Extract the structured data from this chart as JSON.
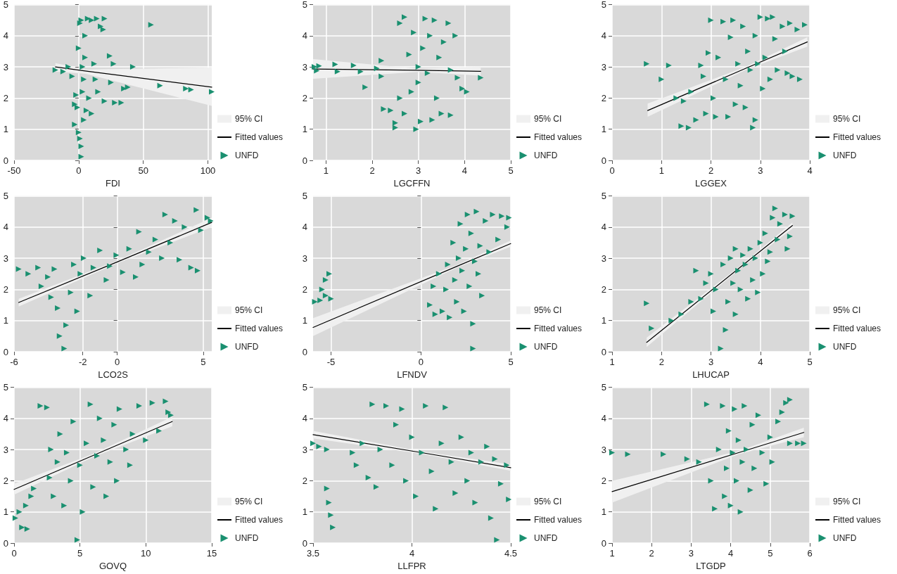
{
  "chart_data": [
    {
      "type": "scatter",
      "xlabel": "FDI",
      "annotations": [
        "95% CI"
      ],
      "xlim": [
        -50,
        103
      ],
      "xticks": [
        -50,
        0,
        50,
        100
      ],
      "ylim": [
        0,
        5
      ],
      "yticks": [
        0,
        1,
        2,
        3,
        4,
        5
      ],
      "grid": true,
      "legend": "right",
      "series": [
        {
          "name": "Fitted values",
          "type": "line",
          "color": "#000000",
          "x": [
            -18,
            5,
            103
          ],
          "values": [
            3.0,
            2.87,
            2.35
          ],
          "lower": [
            2.85,
            2.78,
            1.75
          ],
          "upper": [
            3.12,
            2.92,
            2.98
          ]
        },
        {
          "name": "UNFD",
          "type": "scatter",
          "marker": "triangle",
          "color": "#1a9070",
          "x": [
            -18,
            -12,
            -8,
            -5,
            -3,
            -2,
            -3,
            -1,
            0,
            1,
            2,
            2,
            0,
            1,
            2,
            3,
            3,
            4,
            4,
            5,
            5,
            6,
            7,
            8,
            10,
            10,
            12,
            13,
            14,
            15,
            17,
            19,
            20,
            20,
            24,
            25,
            27,
            28,
            33,
            35,
            38,
            42,
            56,
            63,
            83,
            87,
            103
          ],
          "values": [
            2.9,
            2.85,
            3.0,
            2.7,
            1.8,
            2.1,
            1.15,
            1.7,
            0.9,
            0.7,
            0.45,
            0.12,
            3.6,
            4.4,
            4.5,
            3.0,
            2.2,
            1.3,
            2.6,
            3.3,
            4.0,
            1.6,
            4.55,
            2.0,
            4.5,
            1.5,
            3.1,
            2.6,
            4.55,
            2.2,
            4.3,
            4.2,
            4.55,
            1.9,
            3.35,
            2.5,
            3.1,
            1.85,
            1.85,
            2.3,
            2.35,
            3.0,
            4.35,
            2.4,
            2.3,
            2.27,
            2.2
          ]
        }
      ]
    },
    {
      "type": "scatter",
      "xlabel": "LGCFFN",
      "annotations": [
        "95% CI"
      ],
      "xlim": [
        0.72,
        5
      ],
      "xticks": [
        1,
        2,
        3,
        4,
        5
      ],
      "ylim": [
        0,
        5
      ],
      "yticks": [
        0,
        1,
        2,
        3,
        4,
        5
      ],
      "grid": true,
      "legend": "right",
      "series": [
        {
          "name": "Fitted values",
          "type": "line",
          "color": "#000000",
          "x": [
            0.72,
            3.0,
            4.35
          ],
          "values": [
            2.93,
            2.89,
            2.86
          ],
          "lower": [
            2.62,
            2.84,
            2.72
          ],
          "upper": [
            3.25,
            2.94,
            3.0
          ]
        },
        {
          "name": "UNFD",
          "type": "scatter",
          "marker": "triangle",
          "color": "#1a9070",
          "x": [
            0.75,
            0.8,
            0.85,
            1.2,
            1.25,
            1.6,
            1.75,
            1.85,
            2.1,
            2.2,
            2.2,
            2.25,
            2.4,
            2.5,
            2.5,
            2.6,
            2.6,
            2.7,
            2.7,
            2.8,
            2.85,
            2.9,
            2.95,
            3.0,
            3.0,
            3.05,
            3.1,
            3.15,
            3.2,
            3.25,
            3.3,
            3.35,
            3.4,
            3.45,
            3.5,
            3.55,
            3.65,
            3.7,
            3.7,
            3.8,
            3.85,
            3.95,
            4.05,
            4.35
          ],
          "values": [
            3.0,
            2.88,
            3.03,
            3.08,
            2.85,
            3.05,
            2.85,
            2.35,
            2.95,
            3.2,
            2.7,
            1.65,
            1.6,
            1.05,
            1.2,
            2.0,
            4.4,
            1.5,
            4.6,
            3.4,
            2.2,
            4.1,
            1.0,
            3.0,
            2.5,
            1.25,
            3.6,
            4.55,
            2.8,
            4.0,
            1.3,
            4.5,
            2.0,
            3.3,
            1.5,
            3.8,
            4.4,
            2.9,
            1.45,
            4.0,
            2.65,
            2.3,
            2.2,
            2.65
          ]
        }
      ]
    },
    {
      "type": "scatter",
      "xlabel": "LGGEX",
      "annotations": [
        "95% CI"
      ],
      "xlim": [
        0,
        4
      ],
      "xticks": [
        0,
        1,
        2,
        3,
        4
      ],
      "ylim": [
        0,
        5
      ],
      "yticks": [
        0,
        1,
        2,
        3,
        4,
        5
      ],
      "grid": true,
      "legend": "right",
      "series": [
        {
          "name": "Fitted values",
          "type": "line",
          "color": "#000000",
          "x": [
            0.72,
            2.7,
            3.95
          ],
          "values": [
            1.6,
            2.95,
            3.8
          ],
          "lower": [
            1.4,
            2.9,
            3.65
          ],
          "upper": [
            1.82,
            3.0,
            3.95
          ]
        },
        {
          "name": "UNFD",
          "type": "scatter",
          "marker": "triangle",
          "color": "#1a9070",
          "x": [
            0.7,
            1.0,
            1.15,
            1.3,
            1.4,
            1.45,
            1.55,
            1.6,
            1.7,
            1.8,
            1.85,
            1.9,
            1.95,
            2.0,
            2.05,
            2.1,
            2.15,
            2.25,
            2.3,
            2.35,
            2.4,
            2.45,
            2.5,
            2.55,
            2.6,
            2.65,
            2.7,
            2.75,
            2.8,
            2.85,
            2.9,
            2.9,
            2.95,
            3.0,
            3.05,
            3.1,
            3.15,
            3.2,
            3.25,
            3.3,
            3.35,
            3.45,
            3.5,
            3.55,
            3.6,
            3.65,
            3.75,
            3.8,
            3.9
          ],
          "values": [
            3.1,
            2.6,
            3.05,
            2.0,
            1.1,
            1.9,
            1.05,
            2.2,
            1.3,
            3.05,
            2.7,
            1.5,
            3.45,
            4.5,
            2.0,
            1.4,
            3.3,
            4.45,
            2.6,
            1.4,
            3.95,
            4.5,
            1.8,
            3.1,
            2.4,
            4.3,
            1.7,
            3.5,
            2.9,
            1.05,
            1.3,
            4.0,
            3.1,
            4.6,
            2.3,
            3.3,
            4.55,
            2.6,
            4.6,
            3.9,
            2.9,
            4.3,
            3.5,
            2.8,
            4.4,
            2.7,
            4.2,
            2.6,
            4.35
          ]
        }
      ]
    },
    {
      "type": "scatter",
      "xlabel": "LCO2S",
      "annotations": [
        "95% CI"
      ],
      "xlim": [
        -6,
        5.5
      ],
      "xticks": [
        -6,
        -2,
        0,
        5
      ],
      "ylim": [
        0,
        5
      ],
      "yticks": [
        0,
        1,
        2,
        3,
        4,
        5
      ],
      "grid": true,
      "legend": "right",
      "series": [
        {
          "name": "Fitted values",
          "type": "line",
          "color": "#000000",
          "x": [
            -5.73,
            0,
            5.5
          ],
          "values": [
            1.58,
            2.88,
            4.15
          ],
          "lower": [
            1.45,
            2.84,
            4.0
          ],
          "upper": [
            1.7,
            2.92,
            4.3
          ]
        },
        {
          "name": "UNFD",
          "type": "scatter",
          "marker": "triangle",
          "color": "#1a9070",
          "x": [
            -5.73,
            -5.17,
            -4.6,
            -4.41,
            -4.03,
            -3.84,
            -3.65,
            -3.46,
            -3.35,
            -3.08,
            -2.97,
            -2.7,
            -2.52,
            -2.33,
            -2.14,
            -1.95,
            -1.57,
            -1.38,
            -1.0,
            -0.62,
            -0.43,
            -0.05,
            0.33,
            0.7,
            1.08,
            1.27,
            1.46,
            1.84,
            2.22,
            2.6,
            2.79,
            3.09,
            3.36,
            3.62,
            3.92,
            4.3,
            4.61,
            4.68,
            4.87,
            5.25,
            5.44
          ],
          "values": [
            2.65,
            2.5,
            2.7,
            2.1,
            2.4,
            1.75,
            2.65,
            1.4,
            0.5,
            0.1,
            0.85,
            1.9,
            2.8,
            1.3,
            2.5,
            3.0,
            1.8,
            2.7,
            3.25,
            2.3,
            2.75,
            3.1,
            2.55,
            3.3,
            2.4,
            3.85,
            2.8,
            3.2,
            3.6,
            3.0,
            4.4,
            3.5,
            4.2,
            2.95,
            4.0,
            2.7,
            4.55,
            2.6,
            3.9,
            4.3,
            4.2
          ]
        }
      ]
    },
    {
      "type": "scatter",
      "xlabel": "LFNDV",
      "annotations": [
        "95% CI"
      ],
      "xlim": [
        -6,
        5
      ],
      "xticks": [
        -5,
        0,
        5
      ],
      "ylim": [
        0,
        5
      ],
      "yticks": [
        0,
        1,
        2,
        3,
        4,
        5
      ],
      "grid": true,
      "legend": "right",
      "series": [
        {
          "name": "Fitted values",
          "type": "line",
          "color": "#000000",
          "x": [
            -6,
            2,
            5
          ],
          "values": [
            0.78,
            2.74,
            3.47
          ],
          "lower": [
            0.5,
            2.7,
            3.37
          ],
          "upper": [
            1.08,
            2.78,
            3.57
          ]
        },
        {
          "name": "UNFD",
          "type": "scatter",
          "marker": "triangle",
          "color": "#1a9070",
          "x": [
            -5.9,
            -5.6,
            -5.5,
            -5.3,
            -5.1,
            -5.0,
            -5.3,
            0.5,
            0.7,
            0.8,
            1.0,
            1.2,
            1.4,
            1.5,
            1.6,
            1.8,
            1.9,
            2.0,
            2.1,
            2.2,
            2.3,
            2.4,
            2.5,
            2.6,
            2.7,
            2.8,
            2.9,
            2.9,
            3.0,
            3.1,
            3.2,
            3.3,
            3.4,
            3.6,
            3.8,
            4.0,
            4.3,
            4.5,
            4.8,
            4.9
          ],
          "values": [
            1.6,
            1.65,
            2.0,
            2.3,
            2.5,
            1.7,
            1.8,
            1.5,
            2.1,
            1.2,
            2.5,
            1.3,
            2.0,
            2.8,
            1.1,
            3.5,
            2.3,
            1.6,
            3.0,
            4.1,
            2.6,
            1.3,
            3.3,
            4.4,
            2.1,
            3.8,
            0.9,
            0.1,
            2.9,
            4.5,
            2.5,
            3.4,
            1.8,
            4.2,
            3.2,
            4.4,
            3.6,
            4.35,
            4.0,
            4.3
          ]
        }
      ]
    },
    {
      "type": "scatter",
      "xlabel": "LHUCAP",
      "annotations": [
        "95% CI"
      ],
      "xlim": [
        1,
        5
      ],
      "xticks": [
        1,
        2,
        3,
        4,
        5
      ],
      "ylim": [
        0,
        5
      ],
      "yticks": [
        0,
        1,
        2,
        3,
        4,
        5
      ],
      "grid": true,
      "legend": "right",
      "series": [
        {
          "name": "Fitted values",
          "type": "line",
          "color": "#000000",
          "x": [
            1.7,
            3.6,
            4.65
          ],
          "values": [
            0.3,
            2.72,
            4.05
          ],
          "lower": [
            0.15,
            2.68,
            3.95
          ],
          "upper": [
            0.45,
            2.76,
            4.15
          ]
        },
        {
          "name": "UNFD",
          "type": "scatter",
          "marker": "triangle",
          "color": "#1a9070",
          "x": [
            1.7,
            1.8,
            2.2,
            2.4,
            2.6,
            2.7,
            2.8,
            2.9,
            3.0,
            3.05,
            3.1,
            3.2,
            3.25,
            3.3,
            3.35,
            3.4,
            3.45,
            3.5,
            3.5,
            3.55,
            3.6,
            3.65,
            3.7,
            3.75,
            3.8,
            3.85,
            3.9,
            3.95,
            4.0,
            4.05,
            4.1,
            4.15,
            4.2,
            4.25,
            4.3,
            4.35,
            4.4,
            4.5,
            4.55,
            4.6,
            4.65
          ],
          "values": [
            1.55,
            0.75,
            1.0,
            1.2,
            1.6,
            2.6,
            1.7,
            2.2,
            2.5,
            1.3,
            2.0,
            0.1,
            2.8,
            0.7,
            1.6,
            3.0,
            2.2,
            3.3,
            1.2,
            2.6,
            2.0,
            3.1,
            2.8,
            1.7,
            3.3,
            2.3,
            3.0,
            1.9,
            3.5,
            2.5,
            3.8,
            2.9,
            3.2,
            4.3,
            4.6,
            3.6,
            4.1,
            4.4,
            3.3,
            3.7,
            4.35
          ]
        }
      ]
    },
    {
      "type": "scatter",
      "xlabel": "GOVQ",
      "annotations": [
        "95% CI"
      ],
      "xlim": [
        0,
        15
      ],
      "xticks": [
        0,
        5,
        10,
        15
      ],
      "ylim": [
        0,
        5
      ],
      "yticks": [
        0,
        1,
        2,
        3,
        4,
        5
      ],
      "grid": true,
      "legend": "right",
      "series": [
        {
          "name": "Fitted values",
          "type": "line",
          "color": "#000000",
          "x": [
            0,
            6,
            12
          ],
          "values": [
            1.72,
            2.81,
            3.9
          ],
          "lower": [
            1.55,
            2.76,
            3.75
          ],
          "upper": [
            1.9,
            2.86,
            4.05
          ]
        },
        {
          "name": "UNFD",
          "type": "scatter",
          "marker": "triangle",
          "color": "#1a9070",
          "x": [
            0.1,
            0.4,
            0.6,
            0.9,
            1.0,
            1.3,
            1.5,
            2.0,
            2.5,
            2.7,
            2.8,
            3.0,
            3.3,
            3.5,
            3.8,
            4.0,
            4.3,
            4.5,
            4.8,
            5.0,
            5.2,
            5.5,
            5.8,
            6.0,
            6.3,
            6.5,
            6.8,
            7.0,
            7.3,
            7.6,
            7.8,
            8.0,
            8.5,
            8.8,
            9.0,
            9.5,
            10.0,
            10.5,
            11.0,
            11.5,
            11.7,
            11.9
          ],
          "values": [
            0.8,
            1.0,
            0.5,
            1.2,
            0.45,
            1.5,
            1.75,
            4.4,
            4.35,
            2.1,
            3.0,
            1.5,
            2.6,
            3.5,
            1.2,
            2.9,
            2.0,
            3.9,
            0.1,
            2.5,
            1.0,
            3.2,
            4.45,
            1.8,
            2.8,
            4.0,
            3.3,
            1.5,
            2.6,
            3.8,
            2.0,
            4.3,
            3.0,
            2.5,
            3.5,
            4.4,
            3.3,
            4.5,
            3.6,
            4.55,
            4.2,
            4.1
          ]
        }
      ]
    },
    {
      "type": "scatter",
      "xlabel": "LLFPR",
      "annotations": [
        "95% CI"
      ],
      "xlim": [
        3.5,
        4.5
      ],
      "xticks": [
        3.5,
        4,
        4.5
      ],
      "ylim": [
        0,
        5
      ],
      "yticks": [
        0,
        1,
        2,
        3,
        4,
        5
      ],
      "grid": true,
      "legend": "right",
      "series": [
        {
          "name": "Fitted values",
          "type": "line",
          "color": "#000000",
          "x": [
            3.5,
            4.05,
            4.5
          ],
          "values": [
            3.48,
            2.9,
            2.42
          ],
          "lower": [
            3.36,
            2.86,
            2.32
          ],
          "upper": [
            3.6,
            2.94,
            2.52
          ]
        },
        {
          "name": "UNFD",
          "type": "scatter",
          "marker": "triangle",
          "color": "#1a9070",
          "x": [
            3.5,
            3.53,
            3.57,
            3.57,
            3.58,
            3.59,
            3.6,
            3.7,
            3.72,
            3.75,
            3.78,
            3.8,
            3.82,
            3.84,
            3.87,
            3.9,
            3.92,
            3.95,
            3.97,
            4.0,
            4.02,
            4.05,
            4.07,
            4.1,
            4.12,
            4.15,
            4.17,
            4.2,
            4.22,
            4.25,
            4.28,
            4.3,
            4.32,
            4.35,
            4.38,
            4.4,
            4.42,
            4.43,
            4.45,
            4.48,
            4.49
          ],
          "values": [
            3.2,
            3.1,
            3.0,
            1.75,
            1.3,
            0.9,
            0.5,
            2.9,
            2.5,
            3.2,
            2.1,
            4.45,
            1.8,
            3.0,
            4.4,
            2.5,
            3.8,
            4.3,
            2.0,
            3.4,
            1.5,
            2.9,
            4.4,
            2.3,
            1.1,
            3.2,
            4.35,
            2.6,
            1.6,
            3.4,
            2.0,
            2.9,
            1.3,
            2.6,
            3.1,
            0.8,
            2.7,
            0.1,
            1.9,
            2.5,
            1.4
          ]
        }
      ]
    },
    {
      "type": "scatter",
      "xlabel": "LTGDP",
      "annotations": [
        "95% CI"
      ],
      "xlim": [
        1,
        6
      ],
      "xticks": [
        1,
        2,
        3,
        4,
        5,
        6
      ],
      "ylim": [
        0,
        5
      ],
      "yticks": [
        0,
        1,
        2,
        3,
        4,
        5
      ],
      "grid": true,
      "legend": "right",
      "series": [
        {
          "name": "Fitted values",
          "type": "line",
          "color": "#000000",
          "x": [
            1,
            4.2,
            5.85
          ],
          "values": [
            1.65,
            2.9,
            3.55
          ],
          "lower": [
            1.3,
            2.85,
            3.4
          ],
          "upper": [
            2.0,
            2.95,
            3.7
          ]
        },
        {
          "name": "UNFD",
          "type": "scatter",
          "marker": "triangle",
          "color": "#1a9070",
          "x": [
            1.0,
            1.4,
            2.3,
            2.9,
            3.2,
            3.4,
            3.5,
            3.6,
            3.7,
            3.8,
            3.85,
            3.9,
            3.95,
            4.0,
            4.05,
            4.1,
            4.15,
            4.2,
            4.25,
            4.3,
            4.35,
            4.4,
            4.5,
            4.55,
            4.6,
            4.7,
            4.8,
            4.9,
            5.0,
            5.05,
            5.2,
            5.3,
            5.4,
            5.5,
            5.5,
            5.7,
            5.85
          ],
          "values": [
            2.9,
            2.85,
            2.85,
            2.7,
            2.6,
            4.45,
            2.0,
            1.1,
            3.0,
            4.4,
            1.5,
            2.4,
            3.6,
            1.2,
            2.9,
            4.3,
            2.0,
            3.3,
            1.0,
            2.6,
            4.4,
            3.0,
            1.7,
            3.8,
            2.4,
            4.1,
            2.9,
            1.9,
            3.4,
            2.6,
            3.9,
            4.2,
            4.5,
            4.6,
            3.2,
            3.2,
            3.2
          ]
        }
      ]
    }
  ]
}
